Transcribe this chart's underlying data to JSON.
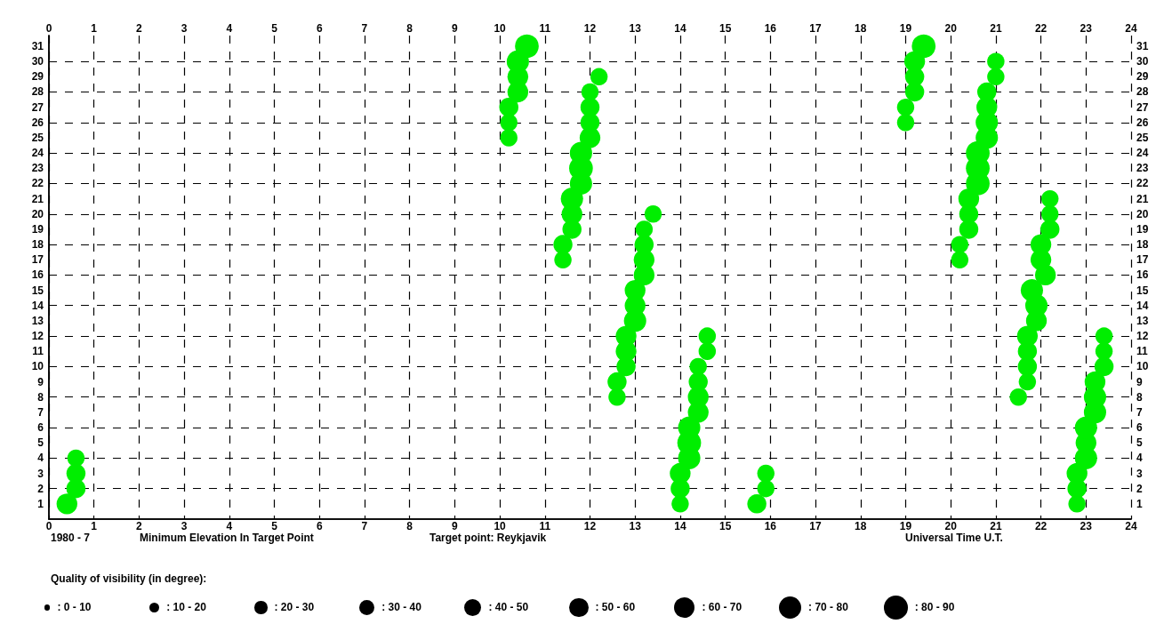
{
  "chart_data": {
    "type": "bubble",
    "xlabel": "Universal Time U.T.",
    "legend_title": "Quality of visibility (in degree):",
    "annotations": [
      "1980 - 7",
      "Minimum Elevation In Target Point",
      "Target point: Reykjavik"
    ],
    "xlim": [
      0,
      24
    ],
    "xticks": [
      0,
      1,
      2,
      3,
      4,
      5,
      6,
      7,
      8,
      9,
      10,
      11,
      12,
      13,
      14,
      15,
      16,
      17,
      18,
      19,
      20,
      21,
      22,
      23,
      24
    ],
    "x2lim": [
      0,
      24
    ],
    "x2ticks": [
      0,
      1,
      2,
      3,
      4,
      5,
      6,
      7,
      8,
      9,
      10,
      11,
      12,
      13,
      14,
      15,
      16,
      17,
      18,
      19,
      20,
      21,
      22,
      23,
      24
    ],
    "ylim": [
      0,
      31.7
    ],
    "yticks": [
      1,
      2,
      3,
      4,
      5,
      6,
      7,
      8,
      9,
      10,
      11,
      12,
      13,
      14,
      15,
      16,
      17,
      18,
      19,
      20,
      21,
      22,
      23,
      24,
      25,
      26,
      27,
      28,
      29,
      30,
      31
    ],
    "y2lim": [
      0,
      31.7
    ],
    "y2ticks": [
      1,
      2,
      3,
      4,
      5,
      6,
      7,
      8,
      9,
      10,
      11,
      12,
      13,
      14,
      15,
      16,
      17,
      18,
      19,
      20,
      21,
      22,
      23,
      24,
      25,
      26,
      27,
      28,
      29,
      30,
      31
    ],
    "grid": true,
    "marker": "circle",
    "size_legend": [
      {
        "value": 5,
        "label": ": 0 - 10"
      },
      {
        "value": 15,
        "label": ": 10 - 20"
      },
      {
        "value": 25,
        "label": ": 20 - 30"
      },
      {
        "value": 35,
        "label": ": 30 - 40"
      },
      {
        "value": 45,
        "label": ": 40 - 50"
      },
      {
        "value": 55,
        "label": ": 50 - 60"
      },
      {
        "value": 65,
        "label": ": 60 - 70"
      },
      {
        "value": 75,
        "label": ": 70 - 80"
      },
      {
        "value": 85,
        "label": ": 80 - 90"
      }
    ],
    "series": [
      {
        "color": "#00ee00",
        "x": [
          0.4,
          0.6,
          0.6,
          0.6,
          10.2,
          10.2,
          10.2,
          10.4,
          10.4,
          10.4,
          10.6,
          11.4,
          11.4,
          11.6,
          11.6,
          11.6,
          11.8,
          11.8,
          11.8,
          12.0,
          12.0,
          12.0,
          12.0,
          12.2,
          12.6,
          12.6,
          12.8,
          12.8,
          12.8,
          13.0,
          13.0,
          13.0,
          13.2,
          13.2,
          13.2,
          13.2,
          13.4,
          14.0,
          14.0,
          14.0,
          14.2,
          14.2,
          14.2,
          14.4,
          14.4,
          14.4,
          14.4,
          14.6,
          14.6,
          15.7,
          15.9,
          15.9,
          19.0,
          19.0,
          19.2,
          19.2,
          19.2,
          19.4,
          20.2,
          20.2,
          20.4,
          20.4,
          20.4,
          20.6,
          20.6,
          20.6,
          20.8,
          20.8,
          20.8,
          20.8,
          21.0,
          21.0,
          21.5,
          21.7,
          21.7,
          21.7,
          21.7,
          21.9,
          21.9,
          21.8,
          22.1,
          22.0,
          22.0,
          22.2,
          22.2,
          22.2,
          22.8,
          22.8,
          22.8,
          23.0,
          23.0,
          23.0,
          23.2,
          23.2,
          23.2,
          23.4,
          23.4,
          23.4
        ],
        "values": [
          1,
          2,
          3,
          4,
          25,
          26,
          27,
          28,
          29,
          30,
          31,
          17,
          18,
          19,
          20,
          21,
          22,
          23,
          24,
          25,
          26,
          27,
          28,
          29,
          8,
          9,
          10,
          11,
          12,
          13,
          14,
          15,
          16,
          17,
          18,
          19,
          20,
          1,
          2,
          3,
          4,
          5,
          6,
          7,
          8,
          9,
          10,
          11,
          12,
          1,
          2,
          3,
          26,
          27,
          28,
          29,
          30,
          31,
          17,
          18,
          19,
          20,
          21,
          22,
          23,
          24,
          25,
          26,
          27,
          28,
          29,
          30,
          8,
          9,
          10,
          11,
          12,
          13,
          14,
          15,
          16,
          17,
          18,
          19,
          20,
          21,
          1,
          2,
          3,
          4,
          5,
          6,
          7,
          8,
          9,
          10,
          11,
          12
        ],
        "sizes": [
          65,
          55,
          55,
          45,
          45,
          45,
          55,
          65,
          65,
          75,
          85,
          45,
          55,
          55,
          65,
          75,
          75,
          85,
          75,
          65,
          55,
          55,
          45,
          45,
          45,
          55,
          55,
          65,
          65,
          75,
          65,
          65,
          65,
          65,
          55,
          45,
          45,
          45,
          55,
          65,
          75,
          85,
          75,
          65,
          65,
          55,
          45,
          45,
          45,
          55,
          45,
          45,
          45,
          45,
          55,
          55,
          65,
          85,
          45,
          45,
          55,
          55,
          65,
          85,
          85,
          85,
          75,
          75,
          65,
          55,
          45,
          45,
          45,
          45,
          55,
          55,
          65,
          65,
          75,
          75,
          65,
          65,
          65,
          55,
          45,
          45,
          45,
          55,
          65,
          75,
          65,
          75,
          75,
          75,
          65,
          55,
          45,
          45
        ]
      }
    ]
  }
}
